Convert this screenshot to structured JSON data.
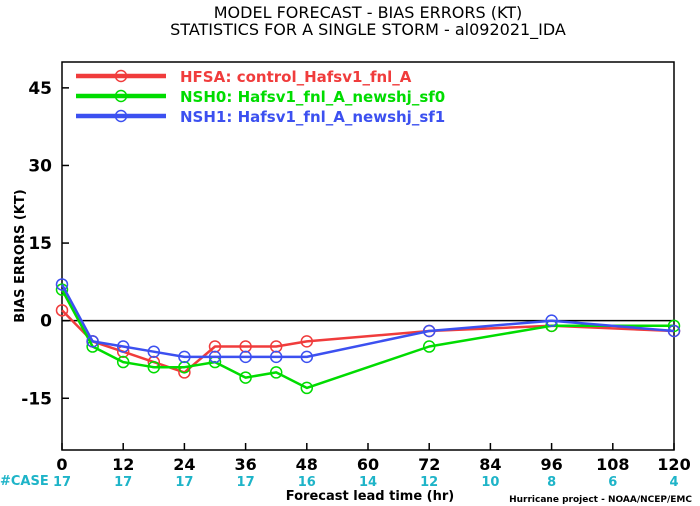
{
  "title_line1": "MODEL FORECAST - BIAS ERRORS (KT)",
  "title_line2": "STATISTICS FOR A SINGLE STORM - al092021_IDA",
  "credit": "Hurricane project - NOAA/NCEP/EMC",
  "case_label": "#CASE",
  "case_color": "#1eb4c8",
  "chart_data": {
    "type": "line",
    "title": "MODEL FORECAST - BIAS ERRORS (KT)",
    "subtitle": "STATISTICS FOR A SINGLE STORM - al092021_IDA",
    "xlabel": "Forecast lead time (hr)",
    "ylabel": "BIAS ERRORS (KT)",
    "xlim": [
      0,
      120
    ],
    "ylim": [
      -25,
      50
    ],
    "xticks": [
      0,
      12,
      24,
      36,
      48,
      60,
      72,
      84,
      96,
      108,
      120
    ],
    "yticks": [
      45,
      30,
      15,
      0,
      -15
    ],
    "ytick_labels": [
      "45",
      "30",
      "15",
      "0",
      "-15"
    ],
    "grid": false,
    "zero_line": true,
    "legend_position": "top-left",
    "case_counts": [
      {
        "x": 0,
        "n": "17"
      },
      {
        "x": 12,
        "n": "17"
      },
      {
        "x": 24,
        "n": "17"
      },
      {
        "x": 36,
        "n": "17"
      },
      {
        "x": 48,
        "n": "16"
      },
      {
        "x": 60,
        "n": "14"
      },
      {
        "x": 72,
        "n": "12"
      },
      {
        "x": 84,
        "n": "10"
      },
      {
        "x": 96,
        "n": "8"
      },
      {
        "x": 108,
        "n": "6"
      },
      {
        "x": 120,
        "n": "4"
      }
    ],
    "series": [
      {
        "name": "HFSA: control_Hafsv1_fnl_A",
        "color": "#f03c3c",
        "x": [
          0,
          6,
          12,
          18,
          24,
          30,
          36,
          42,
          48,
          72,
          96,
          120
        ],
        "y": [
          2,
          -4,
          -6,
          -8,
          -10,
          -5,
          -5,
          -5,
          -4,
          -2,
          -1,
          -2
        ],
        "marker_x": [
          0,
          6,
          12,
          18,
          24,
          30,
          36,
          42,
          48,
          72,
          96,
          120
        ]
      },
      {
        "name": "NSH0: Hafsv1_fnl_A_newshj_sf0",
        "color": "#00dc00",
        "x": [
          0,
          6,
          12,
          18,
          24,
          30,
          36,
          42,
          48,
          72,
          96,
          120
        ],
        "y": [
          6,
          -5,
          -8,
          -9,
          -9,
          -8,
          -11,
          -10,
          -13,
          -5,
          -1,
          -1
        ],
        "marker_x": [
          0,
          6,
          12,
          18,
          24,
          30,
          36,
          42,
          48,
          72,
          96,
          120
        ]
      },
      {
        "name": "NSH1: Hafsv1_fnl_A_newshj_sf1",
        "color": "#3c50f0",
        "x": [
          0,
          6,
          12,
          18,
          24,
          30,
          36,
          42,
          48,
          72,
          96,
          120
        ],
        "y": [
          7,
          -4,
          -5,
          -6,
          -7,
          -7,
          -7,
          -7,
          -7,
          -2,
          0,
          -2
        ],
        "marker_x": [
          0,
          6,
          12,
          18,
          24,
          30,
          36,
          42,
          48,
          72,
          96,
          120
        ]
      }
    ]
  }
}
